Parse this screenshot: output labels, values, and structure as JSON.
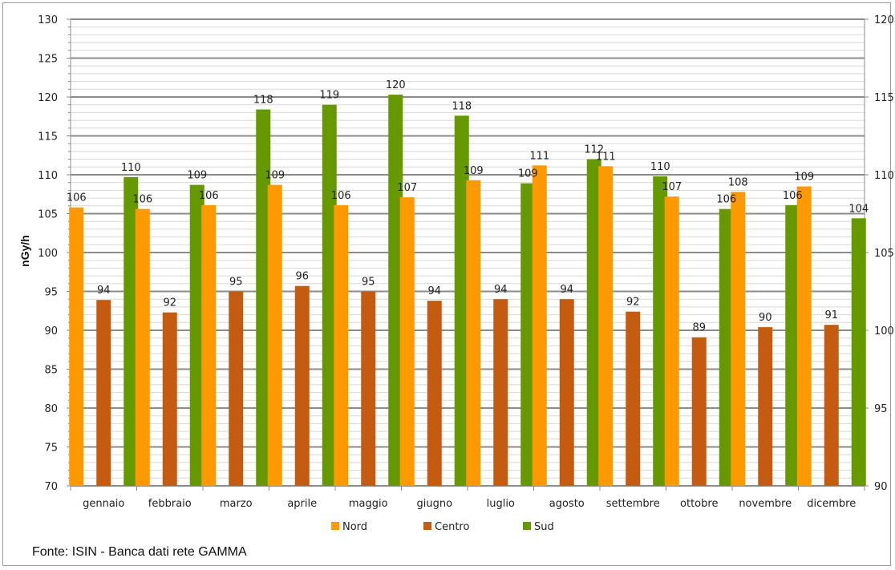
{
  "chart_data": {
    "type": "bar",
    "title": "",
    "xlabel": "",
    "ylabel": "nGy/h",
    "ylim": [
      70,
      130
    ],
    "y_ticks": [
      70,
      75,
      80,
      85,
      90,
      95,
      100,
      105,
      110,
      115,
      120,
      125,
      130
    ],
    "secondary_y_ticks": [
      90,
      95,
      100,
      105,
      110,
      115,
      120
    ],
    "secondary_ylim": [
      90,
      120
    ],
    "grid": true,
    "legend_position": "bottom",
    "categories": [
      "gennaio",
      "febbraio",
      "marzo",
      "aprile",
      "maggio",
      "giugno",
      "luglio",
      "agosto",
      "settembre",
      "ottobre",
      "novembre",
      "dicembre"
    ],
    "series": [
      {
        "name": "Nord",
        "color": "#FF9900",
        "values": [
          106,
          106,
          106,
          109,
          106,
          107,
          109,
          111,
          111,
          107,
          108,
          109
        ],
        "precise": [
          105.8,
          105.6,
          106.1,
          108.7,
          106.1,
          107.1,
          109.3,
          111.2,
          111.1,
          107.2,
          107.8,
          108.5
        ]
      },
      {
        "name": "Centro",
        "color": "#C55A11",
        "values": [
          94,
          92,
          95,
          96,
          95,
          94,
          94,
          94,
          92,
          89,
          90,
          91
        ],
        "precise": [
          93.9,
          92.3,
          95.0,
          95.7,
          95.0,
          93.8,
          94.0,
          94.0,
          92.4,
          89.1,
          90.4,
          90.7
        ]
      },
      {
        "name": "Sud",
        "color": "#669900",
        "values": [
          110,
          109,
          118,
          119,
          120,
          118,
          109,
          112,
          110,
          106,
          106,
          104
        ],
        "precise": [
          109.7,
          108.7,
          118.4,
          119.0,
          120.3,
          117.6,
          108.9,
          112.0,
          109.8,
          105.6,
          106.1,
          104.4
        ]
      }
    ]
  },
  "source_text": "Fonte: ISIN - Banca dati rete GAMMA"
}
